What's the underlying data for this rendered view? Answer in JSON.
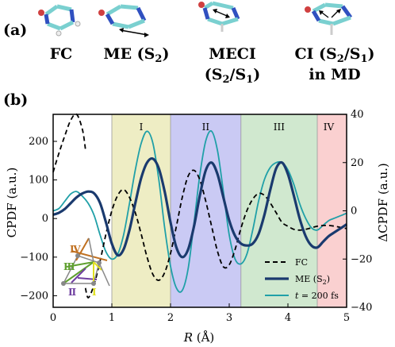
{
  "panel_a": {
    "label": "(a)",
    "molecules": [
      {
        "name": "FC",
        "label_line1": "FC",
        "label_line2": "",
        "sub1": "",
        "tail1": "",
        "sub2": "",
        "tail2": ""
      },
      {
        "name": "ME",
        "label_line1": "ME (S",
        "sub1": "2",
        "tail1": ")",
        "label_line2": "",
        "sub2": "",
        "tail2": ""
      },
      {
        "name": "MECI",
        "label_line1": "MECI",
        "sub1": "",
        "tail1": "",
        "label_line2": "(S",
        "sub2": "2",
        "tail2": "/S"
      },
      {
        "name": "CI",
        "label_line1": "CI (S",
        "sub1": "2",
        "tail1": "/S",
        "label_line2": "in MD",
        "sub2": "",
        "tail2": ""
      }
    ],
    "meci_line2_sub_b": "1",
    "meci_line2_close": ")",
    "ci_line1_sub_b": "1",
    "ci_line1_close": ")"
  },
  "panel_b": {
    "label": "(b)"
  },
  "colors": {
    "fc": "#000000",
    "me": "#1a3a6e",
    "md": "#20a0a8",
    "region1": "#e8e7b0",
    "region2": "#b8b8f0",
    "region3": "#c0e0bf",
    "region4": "#f8c0c0",
    "struct_I": "#e0e020",
    "struct_II": "#7040a0",
    "struct_III": "#60a030",
    "struct_IV": "#c07020",
    "struct_frame": "#888888"
  },
  "chart_data": {
    "type": "line",
    "xlabel": "R (Å)",
    "xlabel_italic": "R",
    "xlabel_unit": " (Å)",
    "ylabel_left": "CPDF (a.u.)",
    "ylabel_right": "ΔCPDF (a.u.)",
    "xlim": [
      0,
      5
    ],
    "ylim_left": [
      -230,
      270
    ],
    "ylim_right": [
      -40,
      40
    ],
    "xticks": [
      0,
      1,
      2,
      3,
      4,
      5
    ],
    "yticks_left": [
      -200,
      -100,
      0,
      100,
      200
    ],
    "yticks_right": [
      -40,
      -20,
      0,
      20,
      40
    ],
    "regions": [
      {
        "label": "I",
        "x": [
          1.0,
          2.0
        ]
      },
      {
        "label": "II",
        "x": [
          2.0,
          3.2
        ]
      },
      {
        "label": "III",
        "x": [
          3.2,
          4.5
        ]
      },
      {
        "label": "IV",
        "x": [
          4.5,
          5.0
        ]
      }
    ],
    "legend": [
      {
        "key": "fc",
        "text": "FC"
      },
      {
        "key": "me",
        "text": "ME (S",
        "sub": "2",
        "tail": ")"
      },
      {
        "key": "md",
        "text_italic": "t",
        "text": " = 200 fs"
      }
    ],
    "legend_position": "bottom-right",
    "series": [
      {
        "key": "fc",
        "axis": "left",
        "style": "dashed",
        "x": [
          0.55,
          0.6,
          0.7,
          0.8,
          0.9,
          1.0,
          1.1,
          1.2,
          1.3,
          1.4,
          1.5,
          1.6,
          1.7,
          1.8,
          1.9,
          2.0,
          2.1,
          2.2,
          2.3,
          2.4,
          2.5,
          2.6,
          2.7,
          2.8,
          2.9,
          3.0,
          3.1,
          3.2,
          3.3,
          3.4,
          3.5,
          3.6,
          3.7,
          3.8,
          3.9,
          4.0,
          4.1,
          4.2,
          4.3,
          4.4,
          4.5,
          4.6,
          4.7,
          4.8,
          4.9,
          5.0
        ],
        "y": [
          -180,
          -205,
          -170,
          -110,
          -40,
          20,
          60,
          75,
          55,
          15,
          -40,
          -100,
          -145,
          -160,
          -140,
          -90,
          -20,
          55,
          110,
          125,
          100,
          45,
          -20,
          -85,
          -125,
          -120,
          -80,
          -25,
          20,
          50,
          65,
          60,
          40,
          15,
          -10,
          -20,
          -28,
          -30,
          -28,
          -24,
          -20,
          -18,
          -18,
          -20,
          -23,
          -26
        ]
      },
      {
        "key": "fc_early",
        "axis": "left",
        "style": "dashed",
        "x": [
          0.0,
          0.1,
          0.2,
          0.3,
          0.4,
          0.5,
          0.55
        ],
        "y": [
          120,
          170,
          215,
          255,
          270,
          230,
          180
        ]
      },
      {
        "key": "me",
        "axis": "left",
        "style": "solid",
        "x": [
          0.0,
          0.1,
          0.2,
          0.3,
          0.4,
          0.5,
          0.6,
          0.7,
          0.8,
          0.9,
          1.0,
          1.1,
          1.2,
          1.3,
          1.4,
          1.5,
          1.6,
          1.7,
          1.8,
          1.9,
          2.0,
          2.1,
          2.2,
          2.3,
          2.4,
          2.5,
          2.6,
          2.7,
          2.8,
          2.9,
          3.0,
          3.1,
          3.2,
          3.3,
          3.4,
          3.5,
          3.6,
          3.7,
          3.8,
          3.9,
          4.0,
          4.1,
          4.2,
          4.3,
          4.4,
          4.5,
          4.6,
          4.7,
          4.8,
          4.9,
          5.0
        ],
        "y": [
          10,
          15,
          25,
          40,
          55,
          65,
          70,
          65,
          40,
          -10,
          -65,
          -95,
          -80,
          -30,
          40,
          105,
          145,
          155,
          130,
          70,
          -10,
          -75,
          -100,
          -80,
          -20,
          60,
          125,
          145,
          115,
          55,
          -5,
          -45,
          -65,
          -70,
          -65,
          -40,
          10,
          75,
          130,
          145,
          115,
          60,
          0,
          -45,
          -70,
          -75,
          -60,
          -45,
          -35,
          -25,
          -15
        ]
      },
      {
        "key": "md",
        "axis": "right",
        "style": "solid",
        "x": [
          0.0,
          0.1,
          0.2,
          0.3,
          0.4,
          0.5,
          0.6,
          0.7,
          0.8,
          0.9,
          1.0,
          1.1,
          1.2,
          1.3,
          1.4,
          1.5,
          1.6,
          1.7,
          1.8,
          1.9,
          2.0,
          2.1,
          2.2,
          2.3,
          2.4,
          2.5,
          2.6,
          2.7,
          2.8,
          2.9,
          3.0,
          3.1,
          3.2,
          3.3,
          3.4,
          3.5,
          3.6,
          3.7,
          3.8,
          3.9,
          4.0,
          4.1,
          4.2,
          4.3,
          4.4,
          4.5,
          4.6,
          4.7,
          4.8,
          4.9,
          5.0
        ],
        "y": [
          0,
          1,
          4,
          7,
          8,
          6,
          3,
          -2,
          -10,
          -17,
          -20,
          -18,
          -10,
          3,
          17,
          28,
          33,
          28,
          13,
          -7,
          -23,
          -32,
          -33,
          -24,
          -5,
          15,
          29,
          33,
          25,
          8,
          -10,
          -20,
          -22,
          -18,
          -8,
          4,
          13,
          18,
          20,
          20,
          17,
          11,
          3,
          -3,
          -7,
          -8,
          -6,
          -4,
          -3,
          -2,
          -1
        ]
      }
    ]
  }
}
